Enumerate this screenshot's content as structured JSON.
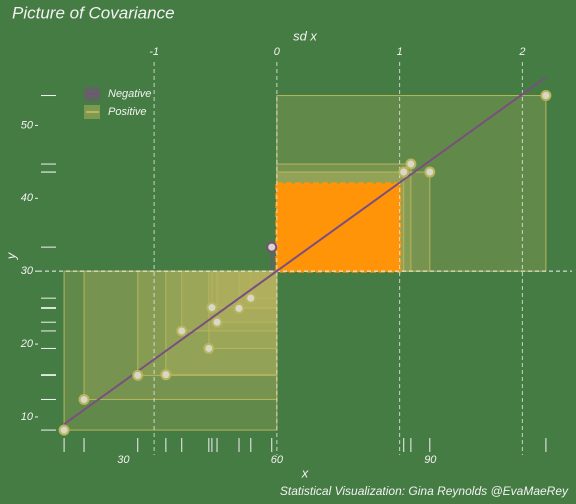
{
  "chart_data": {
    "type": "covariance",
    "title": "Picture of Covariance",
    "x_label": "x",
    "y_label": "y",
    "x2_label": "sd x",
    "caption": "Statistical Visualization: Gina Reynolds @EvaMaeRey",
    "xlim": [
      13.3,
      117.7
    ],
    "ylim": [
      4.78,
      58.7
    ],
    "xticks": [
      30,
      60,
      90
    ],
    "yticks": [
      10,
      20,
      30,
      40,
      50
    ],
    "x2ticks": [
      -1,
      0,
      1,
      2
    ],
    "mean_x": 60,
    "mean_y": 30,
    "sd_x": 24,
    "sd_y": 12,
    "sd_color": "#ff9408",
    "legend": "top-left",
    "series": [
      {
        "name": "Negative",
        "color": "#7a4f80",
        "x": [
          59.0
        ],
        "y": [
          33.3
        ]
      },
      {
        "name": "Positive",
        "color": "#b8b55e",
        "x": [
          18.4,
          22.3,
          32.8,
          38.3,
          41.4,
          46.7,
          47.3,
          48.3,
          52.6,
          54.9,
          84.8,
          86.2,
          89.9,
          112.6
        ],
        "y": [
          8.2,
          12.4,
          15.7,
          15.8,
          21.8,
          19.4,
          25.0,
          23.0,
          24.9,
          26.3,
          43.6,
          44.7,
          43.6,
          54.1
        ]
      }
    ],
    "fit": {
      "color": "#7a4f80",
      "x": [
        18.4,
        112.6
      ],
      "y": [
        9.0,
        56.6
      ]
    }
  }
}
